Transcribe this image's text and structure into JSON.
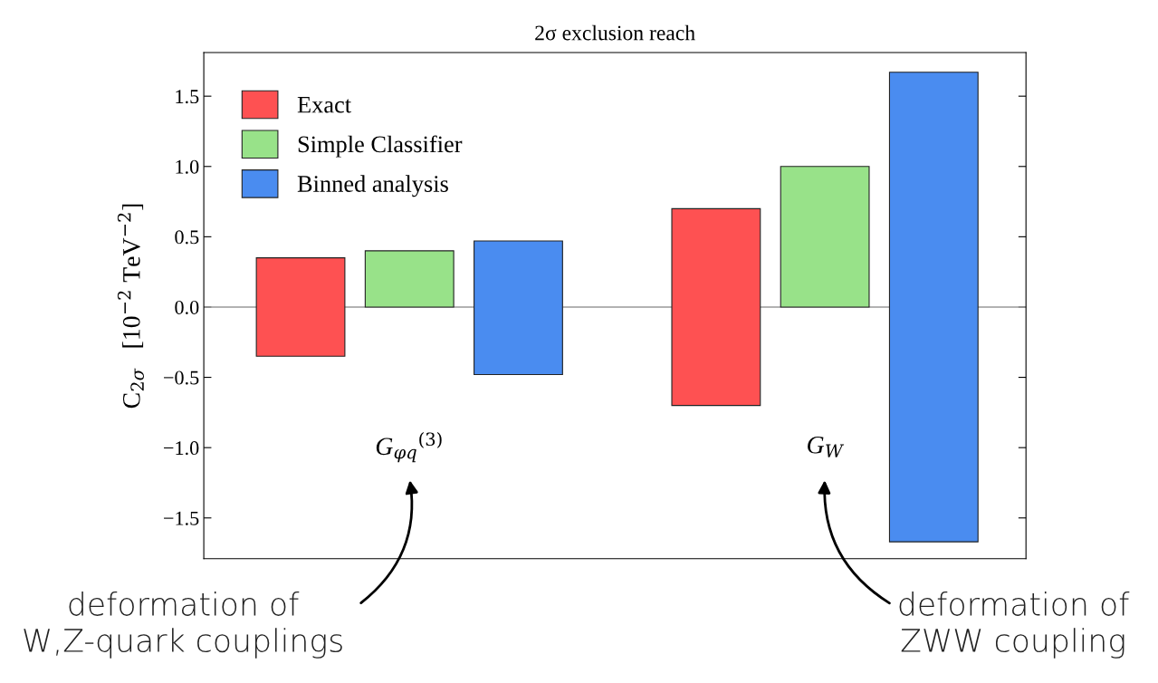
{
  "chart_data": {
    "type": "bar",
    "title": "2σ exclusion reach",
    "ylabel": "C$_{2σ}$   [10$^{−2}$ TeV$^{−2}$]",
    "categories": [
      "G$_{φq}$$^{(3)}$",
      "G$_{W}$"
    ],
    "series": [
      {
        "name": "Exact",
        "color": "#fe5152",
        "base": [
          -0.35,
          -0.7
        ],
        "values": [
          0.7,
          1.4
        ]
      },
      {
        "name": "Simple Classifier",
        "color": "#98e289",
        "base": [
          0,
          0
        ],
        "values": [
          0.4,
          1.0
        ]
      },
      {
        "name": "Binned analysis",
        "color": "#4a8cf0",
        "base": [
          -0.48,
          -1.67
        ],
        "values": [
          0.95,
          3.34
        ]
      }
    ],
    "ylim": [
      -1.79,
      1.81
    ],
    "yticks": [
      {
        "value": -1.5,
        "label": "−1.5"
      },
      {
        "value": -1.0,
        "label": "−1.0"
      },
      {
        "value": -0.5,
        "label": "−0.5"
      },
      {
        "value": 0.0,
        "label": "0.0"
      },
      {
        "value": 0.5,
        "label": "0.5"
      },
      {
        "value": 1.0,
        "label": "1.0"
      },
      {
        "value": 1.5,
        "label": "1.5"
      }
    ],
    "ref_lines": [
      {
        "axis": "y",
        "value": 0,
        "color": "#999999"
      }
    ],
    "legend": "top left",
    "grid": false,
    "annotations": [
      "deformation of\nW,Z-quark couplings",
      "deformation of\nZWW coupling"
    ]
  }
}
